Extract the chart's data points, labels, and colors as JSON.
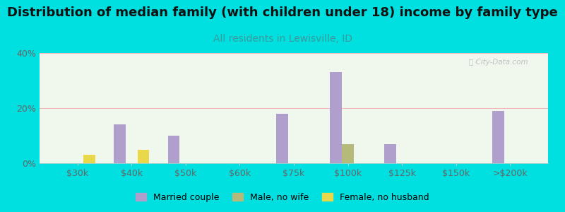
{
  "title": "Distribution of median family (with children under 18) income by family type",
  "subtitle": "All residents in Lewisville, ID",
  "categories": [
    "$30k",
    "$40k",
    "$50k",
    "$60k",
    "$75k",
    "$100k",
    "$125k",
    "$150k",
    ">$200k"
  ],
  "married_couple": [
    0,
    14,
    10,
    0,
    18,
    33,
    7,
    0,
    19
  ],
  "male_no_wife": [
    0,
    0,
    0,
    0,
    0,
    7,
    0,
    0,
    0
  ],
  "female_no_husband": [
    3,
    5,
    0,
    0,
    0,
    0,
    0,
    0,
    0
  ],
  "married_color": "#b09fcc",
  "male_color": "#b5ba7a",
  "female_color": "#e8d84a",
  "background_outer": "#00e0e0",
  "background_chart_top": "#e8f5e8",
  "background_chart_bottom": "#f8fff0",
  "ylim": [
    0,
    40
  ],
  "yticks": [
    0,
    20,
    40
  ],
  "bar_width": 0.22,
  "title_fontsize": 13,
  "subtitle_fontsize": 10,
  "subtitle_color": "#3a9a9a",
  "grid_color": "#f0b8b8",
  "watermark": "ⓘ City-Data.com",
  "watermark_color": "#c0c0c0"
}
